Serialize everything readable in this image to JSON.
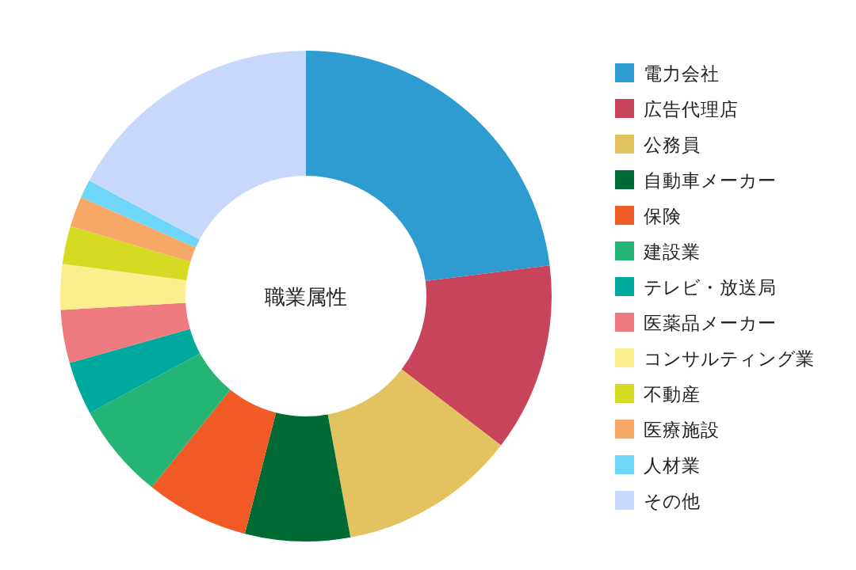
{
  "chart_data": {
    "type": "donut",
    "title": "職業属性",
    "legend": "right",
    "categories": [
      "電力会社",
      "広告代理店",
      "公務員",
      "自動車メーカー",
      "保険",
      "建設業",
      "テレビ・放送局",
      "医薬品メーカー",
      "コンサルティング業",
      "不動産",
      "医療施設",
      "人材業",
      "その他"
    ],
    "values": [
      23,
      12.4,
      11.7,
      6.9,
      6.8,
      6.3,
      3.5,
      3.5,
      3,
      2.5,
      2,
      1.2,
      17.2
    ],
    "colors": [
      "#2e9cd0",
      "#c7445a",
      "#e3c260",
      "#006a34",
      "#f15a24",
      "#24b574",
      "#00a99d",
      "#ef7a80",
      "#fbee8c",
      "#d4db22",
      "#f8a866",
      "#6ed6f8",
      "#c8d8fc"
    ]
  }
}
